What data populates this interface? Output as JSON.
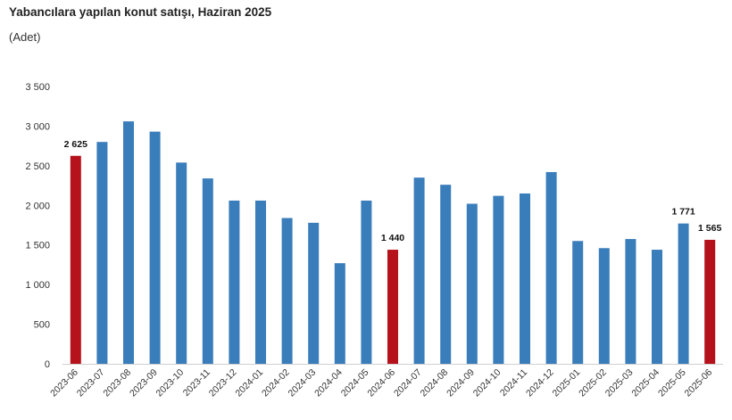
{
  "header": {
    "title": "Yabancılara yapılan konut satışı, Haziran 2025",
    "unit": "(Adet)"
  },
  "colors": {
    "bar": "#3a7dbb",
    "highlight": "#b5121b",
    "axis": "#d0d0d0"
  },
  "chart_data": {
    "type": "bar",
    "title": "Yabancılara yapılan konut satışı, Haziran 2025",
    "ylabel": "(Adet)",
    "ylim": [
      0,
      3500
    ],
    "yticks": [
      0,
      500,
      1000,
      1500,
      2000,
      2500,
      3000,
      3500
    ],
    "ytick_labels": [
      "0",
      "500",
      "1 000",
      "1 500",
      "2 000",
      "2 500",
      "3 000",
      "3 500"
    ],
    "grid": false,
    "categories": [
      "2023-06",
      "2023-07",
      "2023-08",
      "2023-09",
      "2023-10",
      "2023-11",
      "2023-12",
      "2024-01",
      "2024-02",
      "2024-03",
      "2024-04",
      "2024-05",
      "2024-06",
      "2024-07",
      "2024-08",
      "2024-09",
      "2024-10",
      "2024-11",
      "2024-12",
      "2025-01",
      "2025-02",
      "2025-03",
      "2025-04",
      "2025-05",
      "2025-06"
    ],
    "values": [
      2625,
      2800,
      3060,
      2930,
      2540,
      2340,
      2060,
      2060,
      1840,
      1780,
      1270,
      2060,
      1440,
      2350,
      2260,
      2020,
      2120,
      2150,
      2420,
      1550,
      1460,
      1575,
      1440,
      1771,
      1565
    ],
    "highlighted": [
      "2023-06",
      "2024-06",
      "2025-06"
    ],
    "data_labels": [
      {
        "category": "2023-06",
        "text": "2 625"
      },
      {
        "category": "2024-06",
        "text": "1 440"
      },
      {
        "category": "2025-05",
        "text": "1 771"
      },
      {
        "category": "2025-06",
        "text": "1 565"
      }
    ]
  }
}
